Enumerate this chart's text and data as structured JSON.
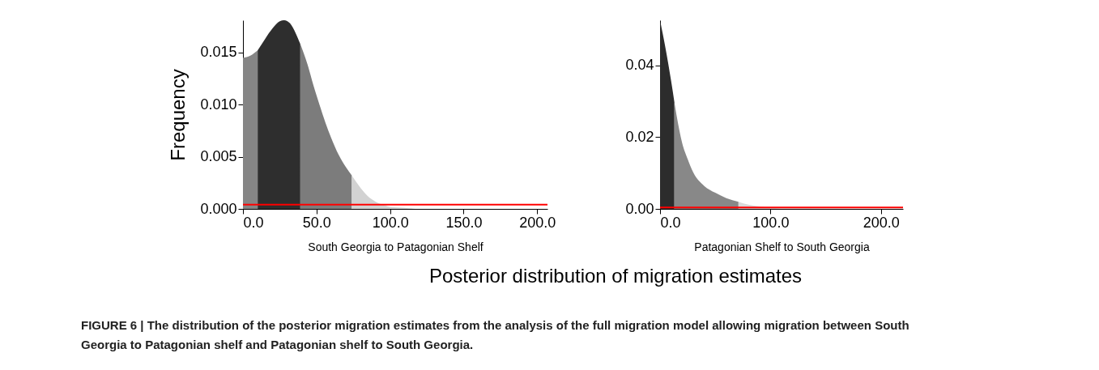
{
  "chart_data": [
    {
      "type": "area",
      "xlabel": "South Georgia to Patagonian Shelf",
      "ylabel": "Frequency",
      "xlim": [
        0,
        207
      ],
      "ylim": [
        0,
        0.0181
      ],
      "xticks": [
        {
          "value": 0,
          "label": "0.0"
        },
        {
          "value": 50,
          "label": "50.0"
        },
        {
          "value": 100,
          "label": "100.0"
        },
        {
          "value": 150,
          "label": "150.0"
        },
        {
          "value": 200,
          "label": "200.0"
        }
      ],
      "yticks": [
        {
          "value": 0,
          "label": "0.000"
        },
        {
          "value": 0.005,
          "label": "0.005"
        },
        {
          "value": 0.01,
          "label": "0.010"
        },
        {
          "value": 0.015,
          "label": "0.015"
        }
      ],
      "series": [
        {
          "color": "#858585",
          "x": [
            0,
            5,
            10
          ],
          "values": [
            0.0145,
            0.0147,
            0.0152
          ]
        },
        {
          "color": "#2e2e2e",
          "x": [
            10,
            15,
            20,
            25,
            28,
            32,
            36,
            39
          ],
          "values": [
            0.0152,
            0.0163,
            0.0173,
            0.018,
            0.0181,
            0.0178,
            0.0168,
            0.0158
          ]
        },
        {
          "color": "#7c7c7c",
          "x": [
            39,
            44,
            48,
            52,
            56,
            60,
            65,
            70,
            74
          ],
          "values": [
            0.0158,
            0.0138,
            0.0118,
            0.01,
            0.0083,
            0.0068,
            0.0052,
            0.004,
            0.0032
          ]
        },
        {
          "color": "#d2d2d2",
          "x": [
            74,
            80,
            85,
            90,
            95,
            100,
            110,
            120,
            207
          ],
          "values": [
            0.0032,
            0.002,
            0.0012,
            0.0007,
            0.0004,
            0.0002,
            0.0001,
            0,
            0
          ]
        }
      ],
      "ref_lines": [
        {
          "axis": "y",
          "value": 0.0004,
          "color": "#ff0000"
        }
      ],
      "annotations": [
        "Posterior distribution of migration estimates",
        "FIGURE 6 | The distribution of the posterior migration estimates from the analysis of the full migration model allowing migration between South Georgia to Patagonian shelf and Patagonian shelf to South Georgia."
      ]
    },
    {
      "type": "area",
      "xlabel": "Patagonian Shelf to South Georgia",
      "xlim": [
        0,
        220
      ],
      "ylim": [
        0,
        0.0526
      ],
      "xticks": [
        {
          "value": 0,
          "label": "0.0"
        },
        {
          "value": 100,
          "label": "100.0"
        },
        {
          "value": 200,
          "label": "200.0"
        }
      ],
      "yticks": [
        {
          "value": 0,
          "label": "0.00"
        },
        {
          "value": 0.02,
          "label": "0.02"
        },
        {
          "value": 0.04,
          "label": "0.04"
        }
      ],
      "series": [
        {
          "color": "#2c2c2c",
          "x": [
            0,
            5,
            10,
            13
          ],
          "values": [
            0.0526,
            0.0447,
            0.0357,
            0.0297
          ]
        },
        {
          "color": "#888888",
          "x": [
            13,
            15,
            20,
            25,
            30,
            40,
            50,
            60,
            71
          ],
          "values": [
            0.0297,
            0.026,
            0.0184,
            0.0139,
            0.0102,
            0.0064,
            0.0045,
            0.003,
            0.002
          ]
        },
        {
          "color": "#dadada",
          "x": [
            71,
            80,
            90,
            100,
            120,
            220
          ],
          "values": [
            0.002,
            0.0012,
            0.0007,
            0.0003,
            0.0001,
            0
          ]
        }
      ],
      "ref_lines": [
        {
          "axis": "y",
          "value": 0.0004,
          "color": "#ff0000"
        }
      ]
    }
  ]
}
